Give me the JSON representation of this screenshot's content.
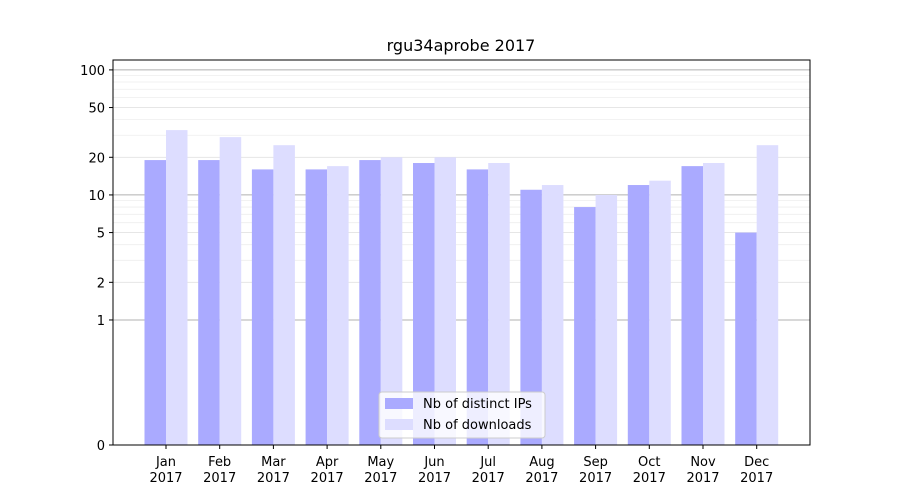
{
  "chart_data": {
    "type": "bar",
    "title": "rgu34aprobe 2017",
    "xlabel": "",
    "ylabel": "",
    "yscale": "symlog",
    "ylim": [
      0,
      120
    ],
    "yticks": [
      0,
      1,
      2,
      5,
      10,
      20,
      50,
      100
    ],
    "grid": "horizontal",
    "legend_position": "bottom-center",
    "categories": [
      "Jan\n2017",
      "Feb\n2017",
      "Mar\n2017",
      "Apr\n2017",
      "May\n2017",
      "Jun\n2017",
      "Jul\n2017",
      "Aug\n2017",
      "Sep\n2017",
      "Oct\n2017",
      "Nov\n2017",
      "Dec\n2017"
    ],
    "series": [
      {
        "name": "Nb of distinct IPs",
        "color": "#aaaaff",
        "values": [
          19,
          19,
          16,
          16,
          19,
          18,
          16,
          11,
          8,
          12,
          17,
          5
        ]
      },
      {
        "name": "Nb of downloads",
        "color": "#ddddff",
        "values": [
          33,
          29,
          25,
          17,
          20,
          20,
          18,
          12,
          10,
          13,
          18,
          25
        ]
      }
    ]
  }
}
